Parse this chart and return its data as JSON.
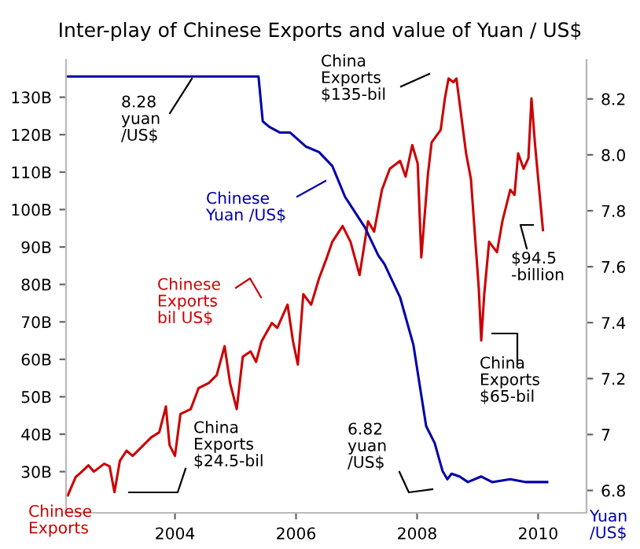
{
  "chart_data": {
    "type": "line",
    "title": "Inter-play of Chinese Exports and value of Yuan / US$",
    "ylabel": "Chinese\nExports",
    "y2label": "Yuan\n/US$",
    "series": [
      {
        "name": "Chinese\nExports\nbil US$",
        "color": "#cc0000",
        "x": [
          2002.23,
          2002.36,
          2002.44,
          2002.57,
          2002.66,
          2002.83,
          2002.92,
          2003.0,
          2003.09,
          2003.2,
          2003.3,
          2003.48,
          2003.61,
          2003.74,
          2003.85,
          2003.91,
          2004.0,
          2004.09,
          2004.26,
          2004.39,
          2004.56,
          2004.69,
          2004.82,
          2004.91,
          2005.02,
          2005.12,
          2005.25,
          2005.34,
          2005.43,
          2005.6,
          2005.69,
          2005.86,
          2005.95,
          2006.03,
          2006.12,
          2006.25,
          2006.38,
          2006.51,
          2006.6,
          2006.77,
          2006.9,
          2007.05,
          2007.19,
          2007.29,
          2007.42,
          2007.55,
          2007.72,
          2007.81,
          2007.92,
          2008.01,
          2008.07,
          2008.18,
          2008.24,
          2008.39,
          2008.46,
          2008.52,
          2008.6,
          2008.65,
          2008.81,
          2008.89,
          2009.02,
          2009.06,
          2009.11,
          2009.19,
          2009.32,
          2009.41,
          2009.54,
          2009.61,
          2009.67,
          2009.76,
          2009.84,
          2009.89,
          2009.95,
          2010.01,
          2010.08
        ],
        "values": [
          23.7,
          28.6,
          29.7,
          31.7,
          30,
          32.1,
          31.4,
          24.5,
          32.9,
          35.6,
          34.2,
          37.1,
          39.2,
          40.5,
          47.4,
          37.1,
          34.2,
          45.4,
          46.7,
          52.3,
          53.7,
          55.8,
          63.5,
          53.7,
          46.7,
          60.7,
          62.1,
          59.3,
          64.8,
          69.7,
          68.4,
          74.6,
          64.8,
          58.6,
          77.4,
          74.6,
          81.6,
          87.2,
          91.4,
          95.6,
          91.4,
          82.5,
          96.9,
          94.1,
          105.3,
          110.9,
          113,
          108.8,
          117.2,
          112.3,
          87.2,
          109.5,
          117.9,
          121.3,
          129.7,
          135,
          134,
          135,
          115,
          108.1,
          78.8,
          65,
          77.4,
          91.4,
          88.6,
          96.9,
          105.3,
          103.9,
          115,
          110.9,
          113.7,
          129.7,
          117.2,
          106.7,
          94.5
        ]
      },
      {
        "name": "Chinese\nYuan /US$",
        "color": "#0000aa",
        "axis": "y2",
        "x": [
          2002.23,
          2005.38,
          2005.45,
          2005.56,
          2005.73,
          2005.9,
          2006.16,
          2006.38,
          2006.6,
          2006.81,
          2007.14,
          2007.36,
          2007.46,
          2007.72,
          2007.94,
          2008.07,
          2008.15,
          2008.29,
          2008.42,
          2008.5,
          2008.57,
          2008.7,
          2008.84,
          2009.06,
          2009.24,
          2009.54,
          2009.8,
          2010.15
        ],
        "values": [
          8.28,
          8.28,
          8.12,
          8.1,
          8.08,
          8.08,
          8.03,
          8.01,
          7.96,
          7.85,
          7.74,
          7.64,
          7.61,
          7.49,
          7.32,
          7.14,
          7.03,
          6.97,
          6.87,
          6.84,
          6.86,
          6.85,
          6.83,
          6.85,
          6.83,
          6.84,
          6.83,
          6.83
        ]
      }
    ],
    "xlim": [
      2002.2,
      2010.8
    ],
    "xticks": [
      2004,
      2006,
      2008,
      2010
    ],
    "ylim": [
      19,
      140
    ],
    "yticks": [
      {
        "value": 30,
        "label": "30B"
      },
      {
        "value": 40,
        "label": "40B"
      },
      {
        "value": 50,
        "label": "50B"
      },
      {
        "value": 60,
        "label": "60B"
      },
      {
        "value": 70,
        "label": "70B"
      },
      {
        "value": 80,
        "label": "80B"
      },
      {
        "value": 90,
        "label": "90B"
      },
      {
        "value": 100,
        "label": "100B"
      },
      {
        "value": 110,
        "label": "110B"
      },
      {
        "value": 120,
        "label": "120B"
      },
      {
        "value": 130,
        "label": "130B"
      }
    ],
    "y2lim": [
      6.72,
      8.34
    ],
    "y2ticks": [
      6.8,
      {
        "value": 7,
        "label": "7"
      },
      7.2,
      7.4,
      7.6,
      7.8,
      {
        "value": 8,
        "label": "8.0"
      },
      8.2
    ],
    "annotations": [
      "8.28\nyuan\n/US$",
      "China\nExports\n$135-bil",
      "$94.5\n-billion",
      "China\nExports\n$65-bil",
      "China\nExports\n$24.5-bil",
      "6.82\nyuan\n/US$"
    ],
    "grid": false,
    "legend": "center left",
    "marker": "none",
    "line_style": "solid"
  }
}
